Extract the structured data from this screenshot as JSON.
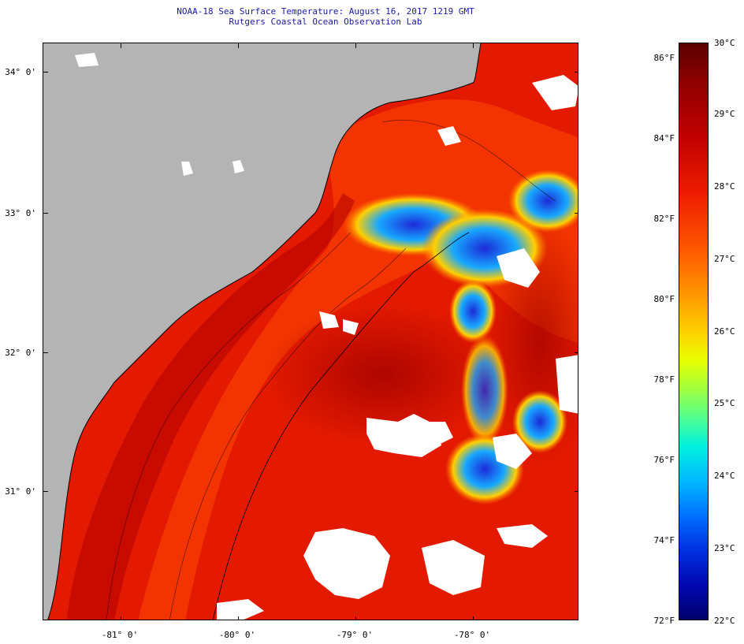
{
  "title": {
    "line1": "NOAA-18 Sea Surface Temperature:  August 16, 2017 1219 GMT",
    "line2": "Rutgers Coastal Ocean Observation Lab"
  },
  "map": {
    "lat_labels": [
      "34° 0'",
      "33° 0'",
      "32° 0'",
      "31° 0'"
    ],
    "lon_labels": [
      "-81° 0'",
      "-80° 0'",
      "-79° 0'",
      "-78° 0'"
    ]
  },
  "colorbar": {
    "f_labels": [
      "86°F",
      "84°F",
      "82°F",
      "80°F",
      "78°F",
      "76°F",
      "74°F",
      "72°F"
    ],
    "c_labels": [
      "30°C",
      "29°C",
      "28°C",
      "27°C",
      "26°C",
      "25°C",
      "24°C",
      "23°C",
      "22°C"
    ]
  },
  "colors": {
    "land": "#b4b4b4",
    "warm": "#e41a00",
    "hot": "#a50000",
    "cool": "#1c2ad8",
    "cloud": "#ffffff",
    "coast": "#000000"
  }
}
